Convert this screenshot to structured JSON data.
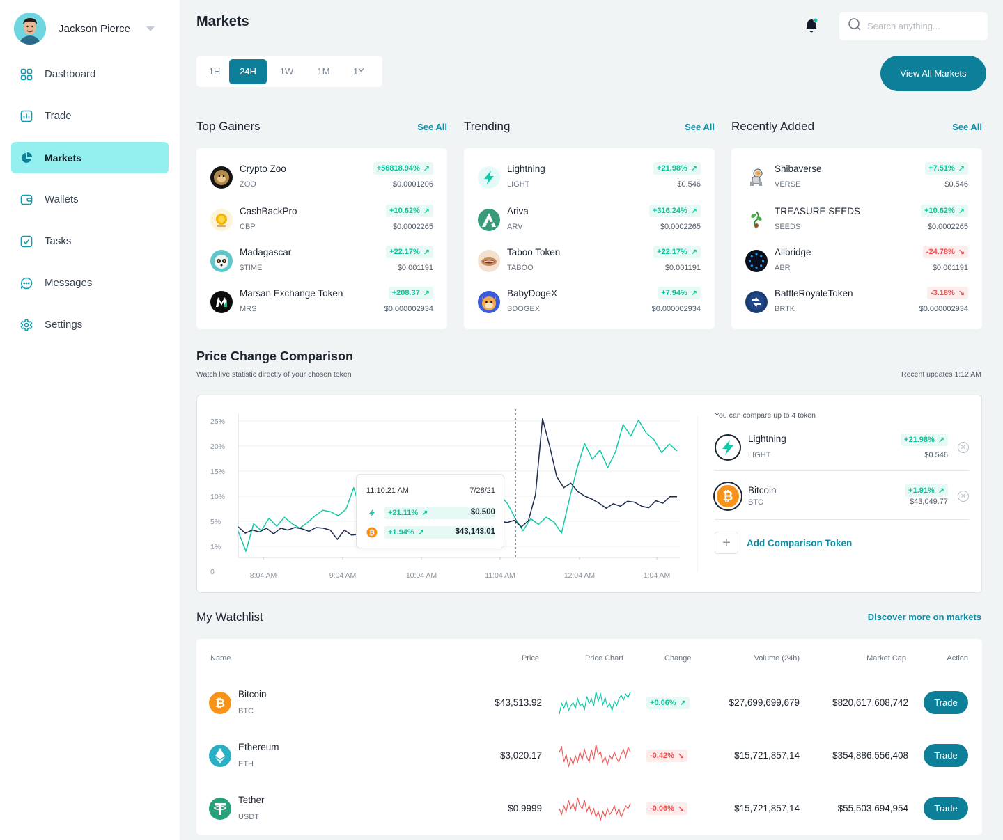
{
  "user": {
    "name": "Jackson Pierce"
  },
  "sidebar": {
    "items": [
      {
        "label": "Dashboard",
        "icon": "grid-icon"
      },
      {
        "label": "Trade",
        "icon": "chart-icon"
      },
      {
        "label": "Markets",
        "icon": "pie-icon",
        "active": true
      },
      {
        "label": "Wallets",
        "icon": "wallet-icon"
      },
      {
        "label": "Tasks",
        "icon": "check-icon"
      },
      {
        "label": "Messages",
        "icon": "message-icon"
      },
      {
        "label": "Settings",
        "icon": "gear-icon"
      }
    ]
  },
  "header": {
    "title": "Markets",
    "search_placeholder": "Search anything..."
  },
  "timeframes": [
    "1H",
    "24H",
    "1W",
    "1M",
    "1Y"
  ],
  "active_timeframe": "24H",
  "view_all_label": "View All Markets",
  "sections": {
    "top_gainers": {
      "title": "Top Gainers",
      "see_all": "See All",
      "items": [
        {
          "name": "Crypto Zoo",
          "symbol": "ZOO",
          "change": "+56818.94%",
          "price": "$0.0001206",
          "dir": "up"
        },
        {
          "name": "CashBackPro",
          "symbol": "CBP",
          "change": "+10.62%",
          "price": "$0.0002265",
          "dir": "up"
        },
        {
          "name": "Madagascar",
          "symbol": "$TIME",
          "change": "+22.17%",
          "price": "$0.001191",
          "dir": "up"
        },
        {
          "name": "Marsan Exchange Token",
          "symbol": "MRS",
          "change": "+208.37",
          "price": "$0.000002934",
          "dir": "up"
        }
      ]
    },
    "trending": {
      "title": "Trending",
      "see_all": "See All",
      "items": [
        {
          "name": "Lightning",
          "symbol": "LIGHT",
          "change": "+21.98%",
          "price": "$0.546",
          "dir": "up"
        },
        {
          "name": "Ariva",
          "symbol": "ARV",
          "change": "+316.24%",
          "price": "$0.0002265",
          "dir": "up"
        },
        {
          "name": "Taboo Token",
          "symbol": "TABOO",
          "change": "+22.17%",
          "price": "$0.001191",
          "dir": "up"
        },
        {
          "name": "BabyDogeX",
          "symbol": "BDOGEX",
          "change": "+7.94%",
          "price": "$0.000002934",
          "dir": "up"
        }
      ]
    },
    "recently_added": {
      "title": "Recently Added",
      "see_all": "See All",
      "items": [
        {
          "name": "Shibaverse",
          "symbol": "VERSE",
          "change": "+7.51%",
          "price": "$0.546",
          "dir": "up"
        },
        {
          "name": "TREASURE SEEDS",
          "symbol": "SEEDS",
          "change": "+10.62%",
          "price": "$0.0002265",
          "dir": "up"
        },
        {
          "name": "Allbridge",
          "symbol": "ABR",
          "change": "-24.78%",
          "price": "$0.001191",
          "dir": "down"
        },
        {
          "name": "BattleRoyaleToken",
          "symbol": "BRTK",
          "change": "-3.18%",
          "price": "$0.000002934",
          "dir": "down"
        }
      ]
    }
  },
  "comparison": {
    "title": "Price Change Comparison",
    "subtitle": "Watch live statistic directly of your chosen token",
    "updated": "Recent updates 1:12 AM",
    "note": "You can compare up to 4 token",
    "tokens": [
      {
        "name": "Lightning",
        "symbol": "LIGHT",
        "change": "+21.98%",
        "price": "$0.546"
      },
      {
        "name": "Bitcoin",
        "symbol": "BTC",
        "change": "+1.91%",
        "price": "$43,049.77"
      }
    ],
    "add_label": "Add Comparison Token",
    "tooltip": {
      "time": "11:10:21 AM",
      "date": "7/28/21",
      "rows": [
        {
          "change": "+21.11%",
          "value": "$0.500"
        },
        {
          "change": "+1.94%",
          "value": "$43,143.01"
        }
      ]
    }
  },
  "chart_data": {
    "type": "line",
    "y_ticks": [
      "25%",
      "20%",
      "15%",
      "10%",
      "5%",
      "1%",
      "0"
    ],
    "x_ticks": [
      "8:04 AM",
      "9:04 AM",
      "10:04 AM",
      "11:04 AM",
      "12:04 AM",
      "1:04 AM"
    ],
    "ylim": [
      0,
      27
    ],
    "grid": true,
    "series": [
      {
        "name": "Lightning",
        "color": "#10c9a8",
        "values": [
          3.4,
          0.8,
          4.6,
          3.5,
          5.6,
          4.2,
          5.8,
          4.6,
          3.9,
          4.8,
          6.1,
          7.2,
          6.9,
          6.1,
          7.4,
          11.7,
          6.8,
          8.5,
          6.8,
          4.1,
          3.8,
          6.3,
          6.1,
          6.3,
          5.5,
          5.5,
          7.9,
          7.2,
          5.9,
          6.6,
          5.9,
          7.9,
          8.2,
          7.9,
          10.2,
          8.5,
          5.5,
          3.5,
          5.5,
          4.5,
          5.8,
          4.9,
          3.1,
          9.3,
          15.5,
          20.5,
          17.4,
          19.2,
          15.7,
          18.8,
          24.3,
          22.0,
          25.2,
          22.6,
          21.3,
          18.7,
          20.4,
          19.0
        ]
      },
      {
        "name": "Bitcoin",
        "color": "#1d2b4f",
        "values": [
          4.1,
          3.1,
          3.6,
          3.3,
          3.9,
          3.0,
          3.9,
          3.6,
          4.0,
          3.8,
          3.4,
          4.0,
          3.9,
          3.6,
          2.1,
          3.6,
          2.8,
          2.9,
          3.7,
          3.2,
          3.0,
          3.3,
          2.8,
          3.3,
          3.5,
          4.3,
          4.7,
          4.5,
          5.6,
          4.8,
          4.9,
          5.4,
          4.6,
          4.2,
          4.4,
          4.5,
          4.9,
          5.0,
          4.8,
          5.2,
          4.1,
          5.1,
          10.3,
          25.5,
          20.0,
          13.9,
          11.7,
          12.6,
          10.9,
          10.0,
          9.4,
          8.6,
          7.6,
          8.5,
          8.0,
          9.0,
          8.8,
          8.0,
          7.7,
          9.1,
          8.6,
          9.9,
          9.9
        ]
      }
    ]
  },
  "watchlist": {
    "title": "My Watchlist",
    "discover": "Discover more on markets",
    "headers": {
      "name": "Name",
      "price": "Price",
      "chart": "Price Chart",
      "change": "Change",
      "volume": "Volume (24h)",
      "mcap": "Market Cap",
      "action": "Action"
    },
    "rows": [
      {
        "name": "Bitcoin",
        "symbol": "BTC",
        "price": "$43,513.92",
        "change": "+0.06%",
        "dir": "up",
        "volume": "$27,699,699,679",
        "mcap": "$820,617,608,742",
        "trade": "Trade",
        "spark_color": "#10c9a8",
        "spark": [
          5,
          14,
          10,
          16,
          8,
          12,
          15,
          10,
          18,
          12,
          14,
          9,
          20,
          14,
          18,
          12,
          24,
          16,
          22,
          13,
          19,
          11,
          14,
          8,
          16,
          12,
          18,
          21,
          17,
          22,
          19,
          24
        ]
      },
      {
        "name": "Ethereum",
        "symbol": "ETH",
        "price": "$3,020.17",
        "change": "-0.42%",
        "dir": "down",
        "volume": "$15,721,857,14",
        "mcap": "$354,886,556,408",
        "trade": "Trade",
        "spark_color": "#ef5b5b",
        "spark": [
          20,
          24,
          12,
          18,
          8,
          15,
          10,
          17,
          12,
          20,
          14,
          22,
          16,
          12,
          22,
          14,
          26,
          18,
          20,
          12,
          16,
          10,
          17,
          14,
          20,
          15,
          12,
          18,
          22,
          16,
          24,
          20
        ]
      },
      {
        "name": "Tether",
        "symbol": "USDT",
        "price": "$0.9999",
        "change": "-0.06%",
        "dir": "down",
        "volume": "$15,721,857,14",
        "mcap": "$55,503,694,954",
        "trade": "Trade",
        "spark_color": "#ef5b5b",
        "spark": [
          14,
          10,
          16,
          12,
          20,
          14,
          18,
          12,
          22,
          16,
          14,
          20,
          12,
          16,
          10,
          14,
          8,
          12,
          6,
          12,
          8,
          14,
          10,
          12,
          16,
          10,
          14,
          8,
          12,
          16,
          14,
          18
        ]
      }
    ]
  }
}
